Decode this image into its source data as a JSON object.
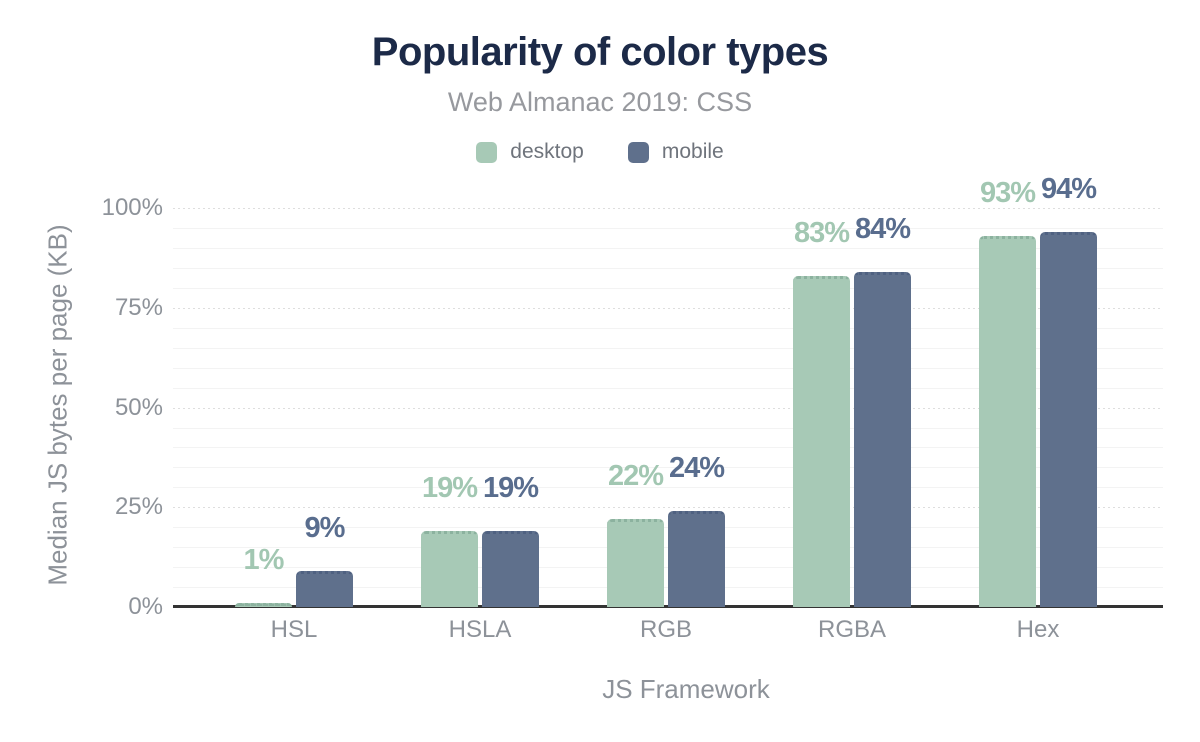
{
  "chart_data": {
    "type": "bar",
    "title": "Popularity of color types",
    "subtitle": "Web Almanac 2019: CSS",
    "xlabel": "JS Framework",
    "ylabel": "Median JS bytes per page (KB)",
    "categories": [
      "HSL",
      "HSLA",
      "RGB",
      "RGBA",
      "Hex"
    ],
    "series": [
      {
        "name": "desktop",
        "color": "#a7c9b6",
        "edge_color": "#8cb29f",
        "label_color": "#a2c7b2",
        "values": [
          1,
          19,
          22,
          83,
          93
        ],
        "labels": [
          "1%",
          "19%",
          "22%",
          "83%",
          "93%"
        ]
      },
      {
        "name": "mobile",
        "color": "#5f708c",
        "edge_color": "#4f6181",
        "label_color": "#596d8e",
        "values": [
          9,
          19,
          24,
          84,
          94
        ],
        "labels": [
          "9%",
          "19%",
          "24%",
          "84%",
          "94%"
        ]
      }
    ],
    "y_ticks": [
      {
        "label": "0%",
        "value": 0
      },
      {
        "label": "25%",
        "value": 25
      },
      {
        "label": "50%",
        "value": 50
      },
      {
        "label": "75%",
        "value": 75
      },
      {
        "label": "100%",
        "value": 100
      }
    ],
    "ylim": [
      0,
      100
    ],
    "grid": {
      "minor_step": 5,
      "major_step": 25,
      "major_style": "dotted"
    },
    "legend_position": "top",
    "colors": {
      "title": "#1c2a48",
      "subtitle": "#97999e",
      "axis_text": "#8d9299",
      "legend_text": "#6f747c",
      "baseline": "#333333",
      "grid_minor": "#f3f3f3",
      "grid_major": "#dedede"
    }
  }
}
